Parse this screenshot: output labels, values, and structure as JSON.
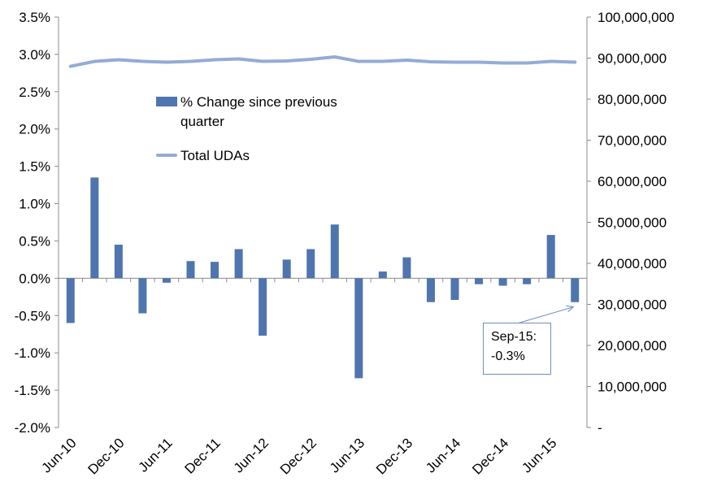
{
  "chart_data": {
    "type": "bar+line",
    "categories": [
      "Jun-10",
      "Sep-10",
      "Dec-10",
      "Mar-11",
      "Jun-11",
      "Sep-11",
      "Dec-11",
      "Mar-12",
      "Jun-12",
      "Sep-12",
      "Dec-12",
      "Mar-13",
      "Jun-13",
      "Sep-13",
      "Dec-13",
      "Mar-14",
      "Jun-14",
      "Sep-14",
      "Dec-14",
      "Mar-15",
      "Jun-15",
      "Sep-15"
    ],
    "x_tick_labels": [
      "Jun-10",
      "Dec-10",
      "Jun-11",
      "Dec-11",
      "Jun-12",
      "Dec-12",
      "Jun-13",
      "Dec-13",
      "Jun-14",
      "Dec-14",
      "Jun-15"
    ],
    "series": [
      {
        "name": "% Change since previous quarter",
        "type": "bar",
        "axis": "left",
        "color": "#4f75ae",
        "values": [
          -0.6,
          1.35,
          0.45,
          -0.47,
          -0.06,
          0.23,
          0.22,
          0.39,
          -0.77,
          0.25,
          0.39,
          0.72,
          -1.34,
          0.09,
          0.28,
          -0.32,
          -0.29,
          -0.08,
          -0.1,
          -0.08,
          0.58,
          -0.32
        ]
      },
      {
        "name": "Total UDAs",
        "type": "line",
        "axis": "right",
        "color": "#93acd6",
        "values": [
          88000000,
          89200000,
          89600000,
          89200000,
          89000000,
          89200000,
          89600000,
          89800000,
          89200000,
          89300000,
          89700000,
          90300000,
          89200000,
          89200000,
          89500000,
          89100000,
          89000000,
          89000000,
          88800000,
          88800000,
          89200000,
          89000000
        ]
      }
    ],
    "left_axis": {
      "ylim": [
        -2.0,
        3.5
      ],
      "ticks": [
        3.5,
        3.0,
        2.5,
        2.0,
        1.5,
        1.0,
        0.5,
        0.0,
        -0.5,
        -1.0,
        -1.5,
        -2.0
      ],
      "tick_labels": [
        "3.5%",
        "3.0%",
        "2.5%",
        "2.0%",
        "1.5%",
        "1.0%",
        "0.5%",
        "0.0%",
        "-0.5%",
        "-1.0%",
        "-1.5%",
        "-2.0%"
      ]
    },
    "right_axis": {
      "ylim": [
        0,
        100000000
      ],
      "ticks": [
        100000000,
        90000000,
        80000000,
        70000000,
        60000000,
        50000000,
        40000000,
        30000000,
        20000000,
        10000000,
        0
      ],
      "tick_labels": [
        "100,000,000",
        "90,000,000",
        "80,000,000",
        "70,000,000",
        "60,000,000",
        "50,000,000",
        "40,000,000",
        "30,000,000",
        "20,000,000",
        "10,000,000",
        "-"
      ]
    },
    "grid": false,
    "legend": "upper-left inside plot",
    "annotation": {
      "lines": [
        "Sep-15:",
        "-0.3%"
      ],
      "points_to": "Sep-15"
    }
  }
}
